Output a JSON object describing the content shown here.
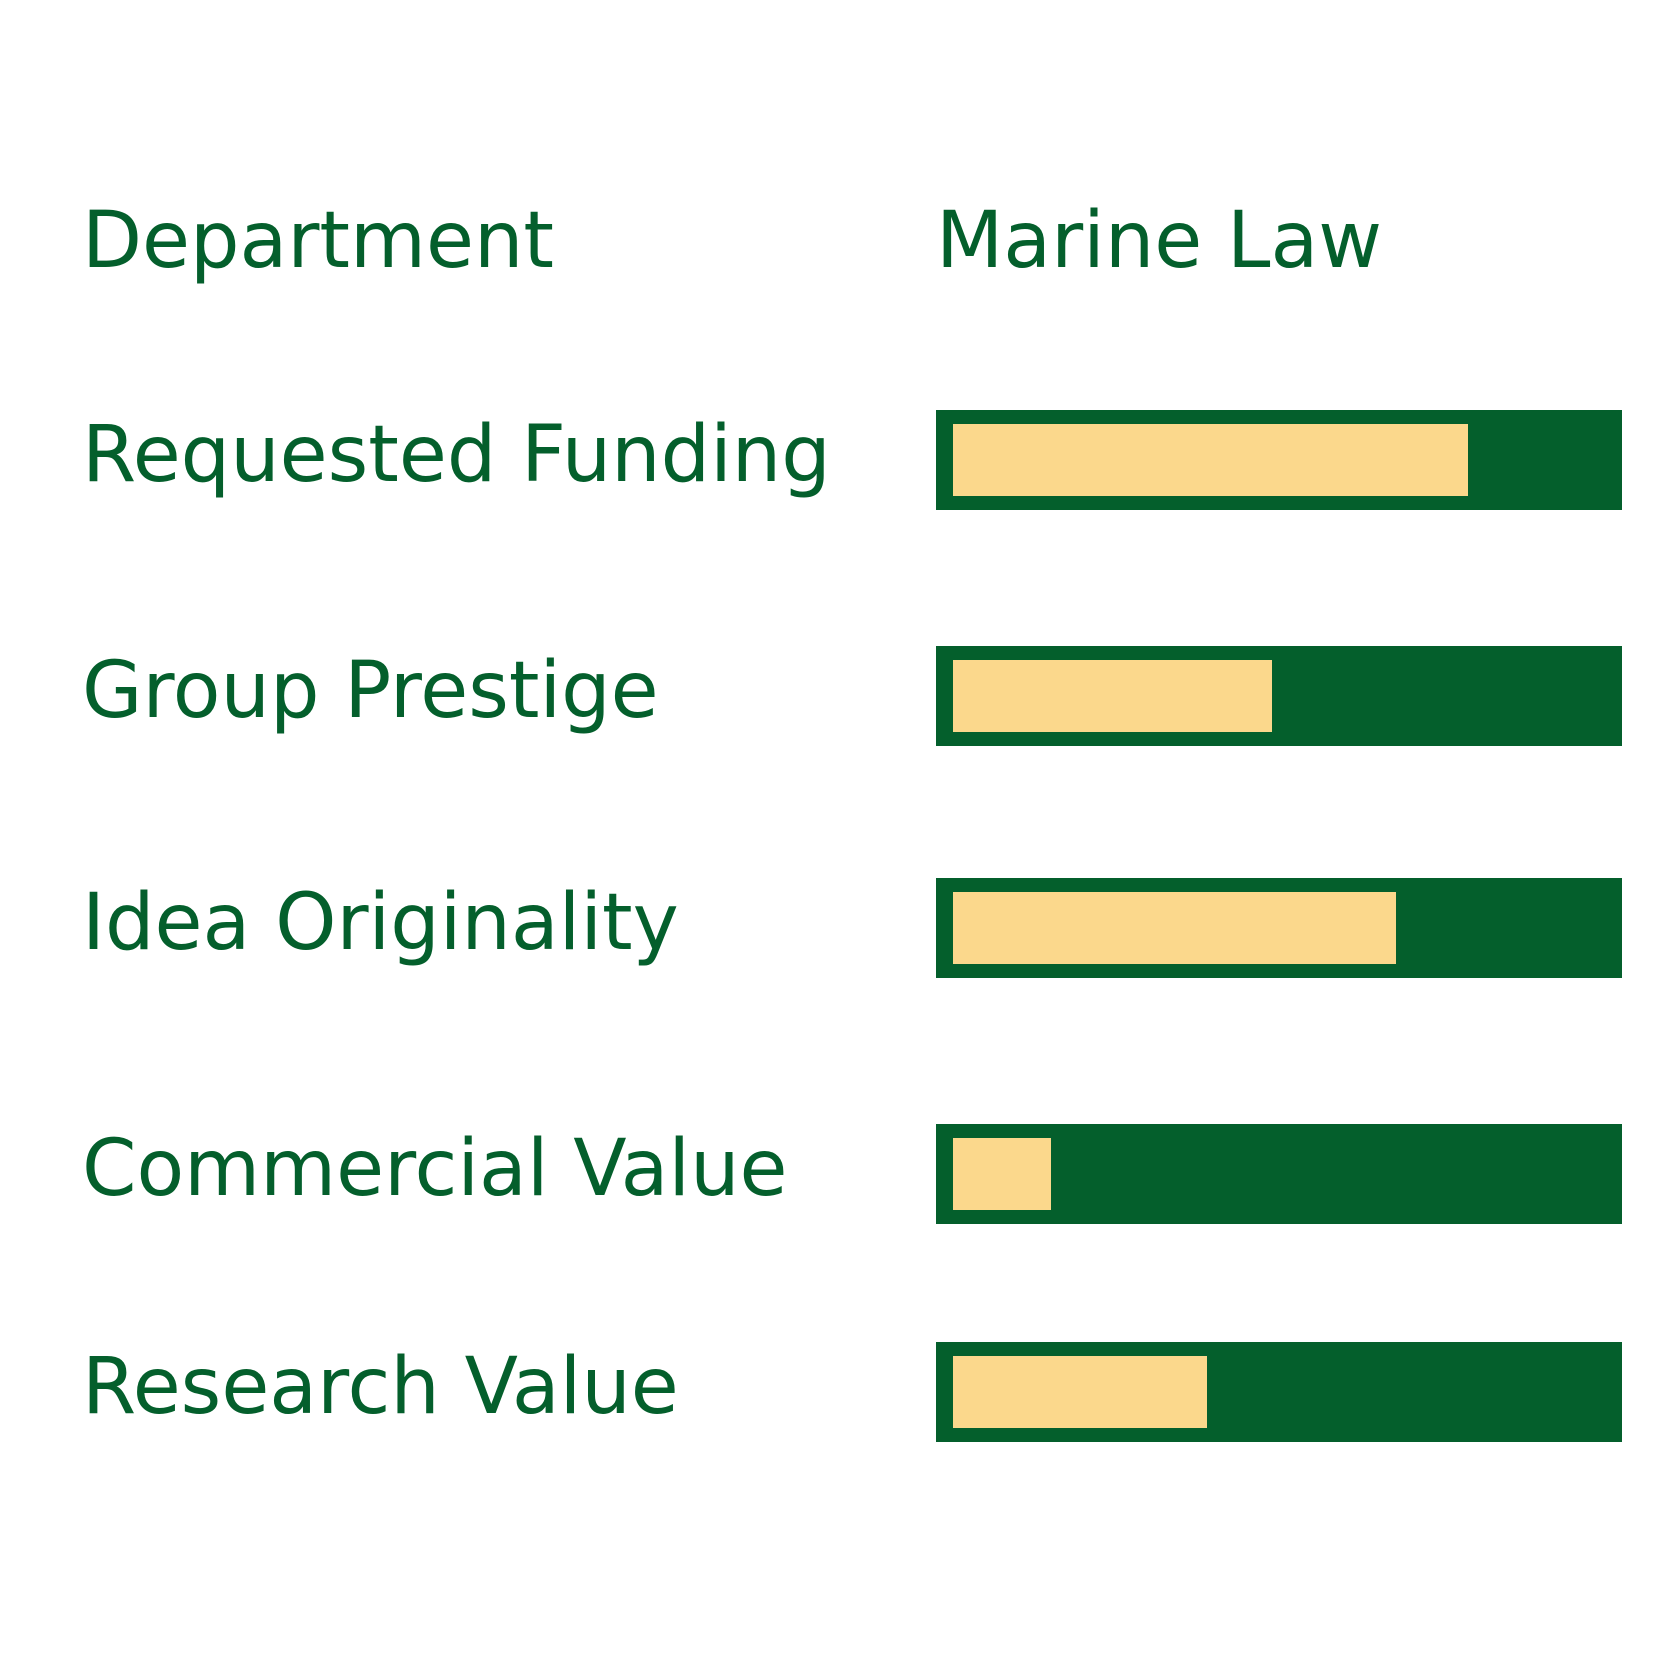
{
  "colors": {
    "track": "#045f2c",
    "fill": "#fbd88c",
    "text": "#045f2c",
    "background": "#ffffff"
  },
  "department": {
    "label": "Department",
    "value": "Marine Law"
  },
  "chart_data": {
    "type": "bar",
    "orientation": "horizontal",
    "categories": [
      "Requested Funding",
      "Group Prestige",
      "Idea Originality",
      "Commercial Value",
      "Research Value"
    ],
    "values": [
      0.79,
      0.49,
      0.68,
      0.15,
      0.39
    ],
    "xlim": [
      0,
      1
    ],
    "title": "",
    "xlabel": "",
    "ylabel": "",
    "grid": false,
    "legend": "none"
  }
}
